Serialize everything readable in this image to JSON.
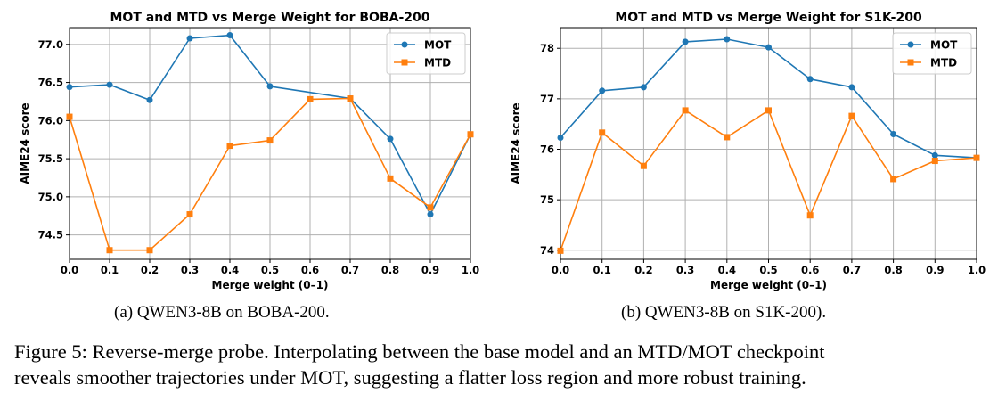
{
  "colors": {
    "mot": "#1f77b4",
    "mtd": "#ff7f0e",
    "grid": "#b0b0b0",
    "axis": "#000000"
  },
  "chart_data": [
    {
      "id": "a",
      "type": "line",
      "title": "MOT and MTD vs Merge Weight for BOBA-200",
      "xlabel": "Merge weight (0–1)",
      "ylabel": "AIME24 score",
      "xlim": [
        0.0,
        1.0
      ],
      "ylim": [
        74.18,
        77.22
      ],
      "xticks": [
        "0.0",
        "0.1",
        "0.2",
        "0.3",
        "0.4",
        "0.5",
        "0.6",
        "0.7",
        "0.8",
        "0.9",
        "1.0"
      ],
      "yticks": [
        "74.5",
        "75.0",
        "75.5",
        "76.0",
        "76.5",
        "77.0"
      ],
      "grid": true,
      "legend_position": "top-right",
      "x": [
        0.0,
        0.1,
        0.2,
        0.3,
        0.4,
        0.5,
        0.6,
        0.7,
        0.8,
        0.9,
        1.0
      ],
      "series": [
        {
          "name": "MOT",
          "marker": "circle",
          "values": [
            76.44,
            76.47,
            76.27,
            77.08,
            77.12,
            76.45,
            null,
            76.29,
            75.76,
            74.77,
            75.82
          ]
        },
        {
          "name": "MTD",
          "marker": "square",
          "values": [
            76.05,
            74.3,
            74.3,
            74.77,
            75.67,
            75.74,
            76.28,
            76.29,
            75.24,
            74.86,
            75.82
          ]
        }
      ]
    },
    {
      "id": "b",
      "type": "line",
      "title": "MOT and MTD vs Merge Weight for S1K-200",
      "xlabel": "Merge weight (0–1)",
      "ylabel": "AIME24 score",
      "xlim": [
        0.0,
        1.0
      ],
      "ylim": [
        73.82,
        78.41
      ],
      "xticks": [
        "0.0",
        "0.1",
        "0.2",
        "0.3",
        "0.4",
        "0.5",
        "0.6",
        "0.7",
        "0.8",
        "0.9",
        "1.0"
      ],
      "yticks": [
        "74",
        "75",
        "76",
        "77",
        "78"
      ],
      "grid": true,
      "legend_position": "top-right",
      "x": [
        0.0,
        0.1,
        0.2,
        0.3,
        0.4,
        0.5,
        0.6,
        0.7,
        0.8,
        0.9,
        1.0
      ],
      "series": [
        {
          "name": "MOT",
          "marker": "circle",
          "values": [
            76.23,
            77.16,
            77.23,
            78.13,
            78.18,
            78.02,
            77.39,
            77.23,
            76.3,
            75.88,
            75.83
          ]
        },
        {
          "name": "MTD",
          "marker": "square",
          "values": [
            73.99,
            76.33,
            75.67,
            76.77,
            76.24,
            76.77,
            74.69,
            76.66,
            75.41,
            75.77,
            75.83
          ]
        }
      ]
    }
  ],
  "subcaptions": {
    "a": "(a) QWEN3-8B on BOBA-200.",
    "b": "(b) QWEN3-8B on S1K-200)."
  },
  "figure_caption": {
    "line1": "Figure 5: Reverse-merge probe. Interpolating between the base model and an MTD/MOT checkpoint",
    "line2": "reveals smoother trajectories under MOT, suggesting a flatter loss region and more robust training."
  }
}
